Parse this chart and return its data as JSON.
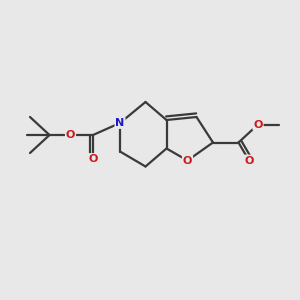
{
  "bg_color": "#e8e8e8",
  "bond_color": "#3a3a3a",
  "bond_width": 1.6,
  "atom_colors": {
    "N": "#1a1acc",
    "O": "#cc1a1a",
    "C": "#3a3a3a"
  },
  "font_size_atom": 8.0,
  "fig_bg": "#e8e8e8"
}
